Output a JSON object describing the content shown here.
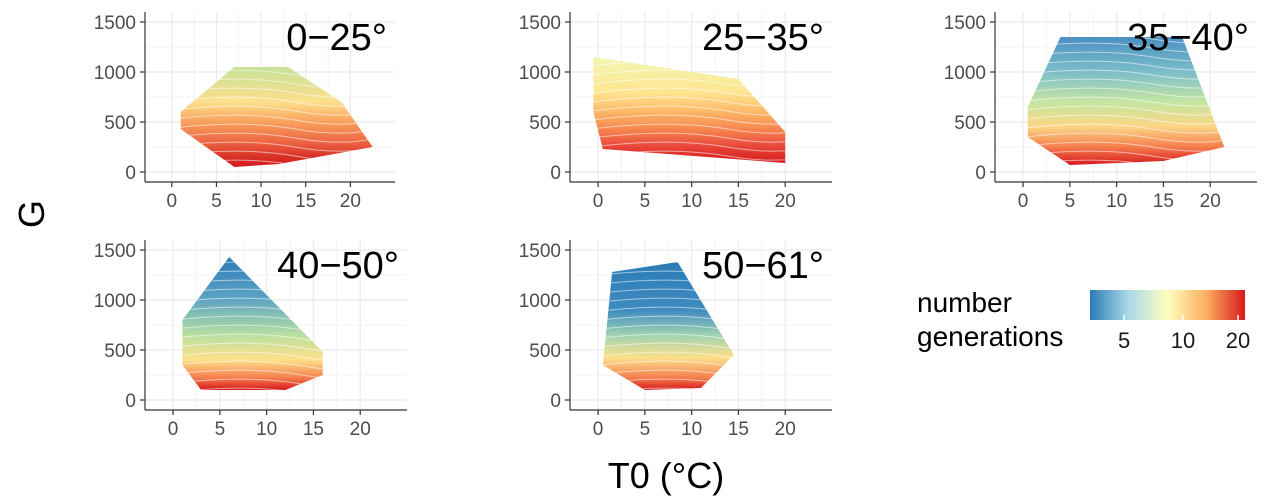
{
  "chart_data": {
    "type": "heatmap",
    "xlabel": "T0 (°C)",
    "ylabel": "G",
    "xlim": [
      -3,
      25
    ],
    "ylim": [
      -100,
      1600
    ],
    "x_ticks": [
      "0",
      "5",
      "10",
      "15",
      "20"
    ],
    "y_ticks": [
      "0",
      "500",
      "1000",
      "1500"
    ],
    "grid": true,
    "colorscale": [
      "#2c7bb6",
      "#abd9e9",
      "#ffffbf",
      "#fdae61",
      "#d7191c"
    ],
    "legend": {
      "title_lines": [
        "number",
        "generations"
      ],
      "ticks": [
        "5",
        "10",
        "20"
      ],
      "position": "right"
    },
    "panels": [
      {
        "label": "0−25°",
        "region": [
          [
            1,
            600
          ],
          [
            7,
            1050
          ],
          [
            13,
            1050
          ],
          [
            19,
            700
          ],
          [
            22.5,
            250
          ],
          [
            12,
            80
          ],
          [
            7,
            50
          ],
          [
            1,
            430
          ]
        ],
        "fill_stops": [
          [
            1050,
            "#c6e29a"
          ],
          [
            700,
            "#fde08b"
          ],
          [
            500,
            "#f9a05e"
          ],
          [
            300,
            "#ee6443"
          ],
          [
            150,
            "#d73027"
          ],
          [
            50,
            "#d7191c"
          ]
        ]
      },
      {
        "label": "25−35°",
        "region": [
          [
            -0.5,
            1150
          ],
          [
            15,
            930
          ],
          [
            20,
            400
          ],
          [
            20,
            90
          ],
          [
            0.5,
            230
          ],
          [
            -0.5,
            600
          ]
        ],
        "fill_stops": [
          [
            1150,
            "#f2f7b2"
          ],
          [
            800,
            "#fee691"
          ],
          [
            600,
            "#fdb768"
          ],
          [
            400,
            "#f57d4d"
          ],
          [
            250,
            "#e8443a"
          ],
          [
            90,
            "#d7191c"
          ]
        ]
      },
      {
        "label": "35−40°",
        "region": [
          [
            4,
            1350
          ],
          [
            17,
            1350
          ],
          [
            21.5,
            250
          ],
          [
            15,
            110
          ],
          [
            5,
            70
          ],
          [
            0.5,
            350
          ],
          [
            0.5,
            650
          ]
        ],
        "fill_stops": [
          [
            1350,
            "#4a90c2"
          ],
          [
            1000,
            "#7cbdc9"
          ],
          [
            700,
            "#c5e6a3"
          ],
          [
            450,
            "#fdd584"
          ],
          [
            250,
            "#f57d4d"
          ],
          [
            70,
            "#d7191c"
          ]
        ]
      },
      {
        "label": "40−50°",
        "region": [
          [
            6,
            1430
          ],
          [
            16,
            480
          ],
          [
            16,
            250
          ],
          [
            12,
            100
          ],
          [
            3,
            100
          ],
          [
            1,
            350
          ],
          [
            1,
            800
          ]
        ],
        "fill_stops": [
          [
            1430,
            "#2c7bb6"
          ],
          [
            1000,
            "#5ea5c4"
          ],
          [
            650,
            "#b9e0a1"
          ],
          [
            400,
            "#fee08b"
          ],
          [
            220,
            "#f57d4d"
          ],
          [
            100,
            "#d7191c"
          ]
        ]
      },
      {
        "label": "50−61°",
        "region": [
          [
            1.5,
            1280
          ],
          [
            8.5,
            1380
          ],
          [
            14.5,
            450
          ],
          [
            11,
            120
          ],
          [
            5,
            100
          ],
          [
            0.5,
            350
          ],
          [
            1,
            800
          ]
        ],
        "fill_stops": [
          [
            1380,
            "#2c7bb6"
          ],
          [
            900,
            "#3f8cc0"
          ],
          [
            650,
            "#9fd3b0"
          ],
          [
            420,
            "#fee08b"
          ],
          [
            220,
            "#f57d4d"
          ],
          [
            100,
            "#d7191c"
          ]
        ]
      }
    ]
  }
}
